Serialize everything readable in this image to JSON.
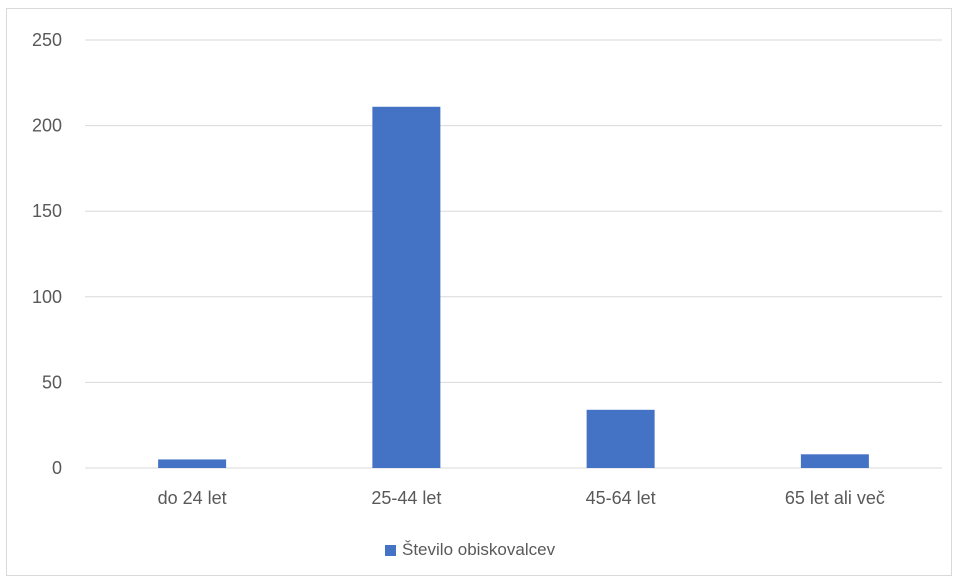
{
  "chart_data": {
    "type": "bar",
    "categories": [
      "do 24 let",
      "25-44 let",
      "45-64 let",
      "65 let ali več"
    ],
    "series": [
      {
        "name": "Število obiskovalcev",
        "values": [
          5,
          211,
          34,
          8
        ],
        "color": "#4472C4"
      }
    ],
    "ylim": [
      0,
      250
    ],
    "yticks": [
      0,
      50,
      100,
      150,
      200,
      250
    ],
    "grid": true,
    "legend_position": "bottom"
  }
}
